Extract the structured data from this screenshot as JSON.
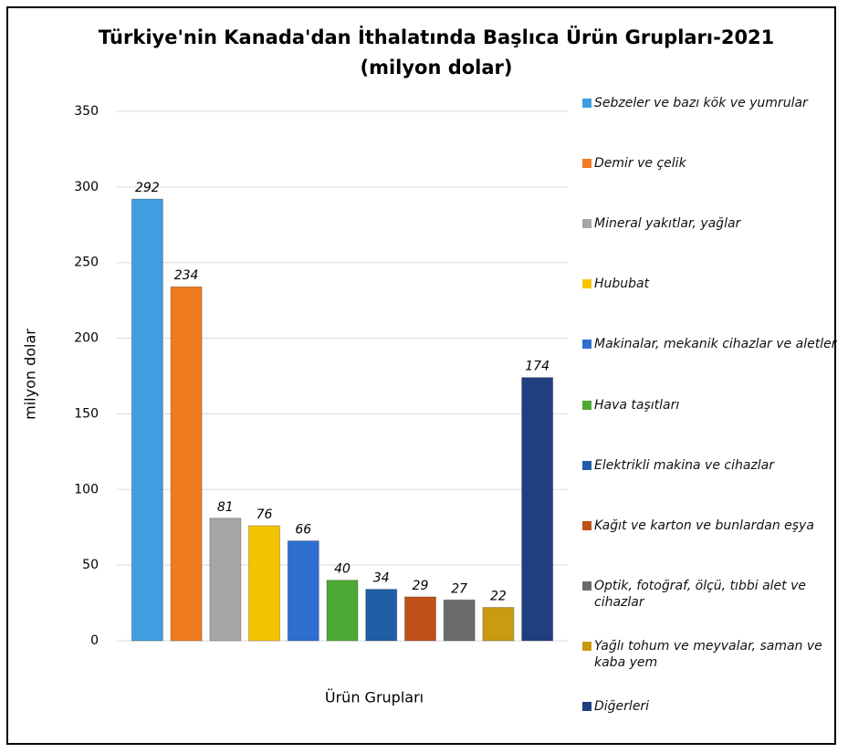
{
  "chart_data": {
    "type": "bar",
    "title": "Türkiye'nin Kanada'dan İthalatında Başlıca Ürün Grupları-2021",
    "subtitle": "(milyon dolar)",
    "y_label": "milyon dolar",
    "x_label": "Ürün Grupları",
    "categories": [
      "Sebzeler ve bazı kök ve yumrular",
      "Demir ve çelik",
      "Mineral yakıtlar, yağlar",
      "Hububat",
      "Makinalar, mekanik cihazlar ve aletler",
      "Hava taşıtları",
      "Elektrikli makina ve cihazlar",
      "Kağıt ve karton ve bunlardan eşya",
      "Optik, fotoğraf, ölçü, tıbbi alet ve cihazlar",
      "Yağlı tohum ve meyvalar, saman ve kaba yem",
      "Diğerleri"
    ],
    "values": [
      292,
      234,
      81,
      76,
      66,
      40,
      34,
      29,
      27,
      22,
      174
    ],
    "colors": [
      "#3f9ee0",
      "#f07a1e",
      "#a6a6a6",
      "#f5c400",
      "#2e6fd0",
      "#4eaa35",
      "#1e5fa6",
      "#c0501a",
      "#6b6b6b",
      "#c89b10",
      "#1f3f80"
    ],
    "ylim": [
      0,
      350
    ],
    "yticks": [
      0,
      50,
      100,
      150,
      200,
      250,
      300,
      350
    ],
    "grid": true,
    "legend": "right"
  }
}
